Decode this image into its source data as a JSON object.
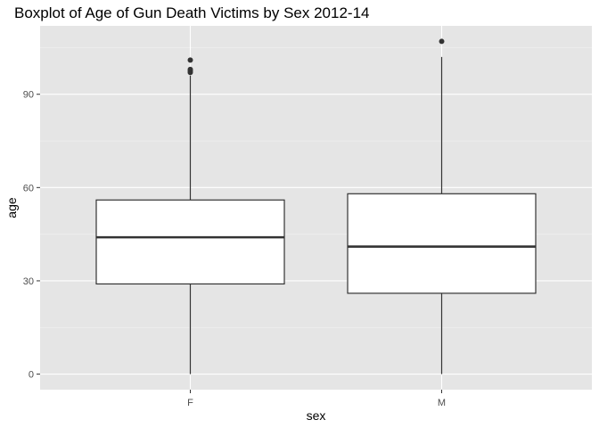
{
  "chart_data": {
    "type": "boxplot",
    "title": "Boxplot of Age of Gun Death Victims by Sex 2012-14",
    "xlabel": "sex",
    "ylabel": "age",
    "categories": [
      "F",
      "M"
    ],
    "ylim": [
      -5,
      112
    ],
    "yticks": [
      0,
      30,
      60,
      90
    ],
    "grid": true,
    "legend": "none",
    "colors": {
      "panel": "#e5e5e5",
      "grid_major": "#ffffff",
      "box_fill": "#ffffff",
      "box_line": "#333333",
      "outlier": "#333333"
    },
    "boxes": [
      {
        "category": "F",
        "min": 0,
        "q1": 29,
        "median": 44,
        "q3": 56,
        "max": 96,
        "outliers": [
          97,
          97.5,
          98,
          101
        ]
      },
      {
        "category": "M",
        "min": 0,
        "q1": 26,
        "median": 41,
        "q3": 58,
        "max": 102,
        "outliers": [
          107
        ]
      }
    ]
  }
}
